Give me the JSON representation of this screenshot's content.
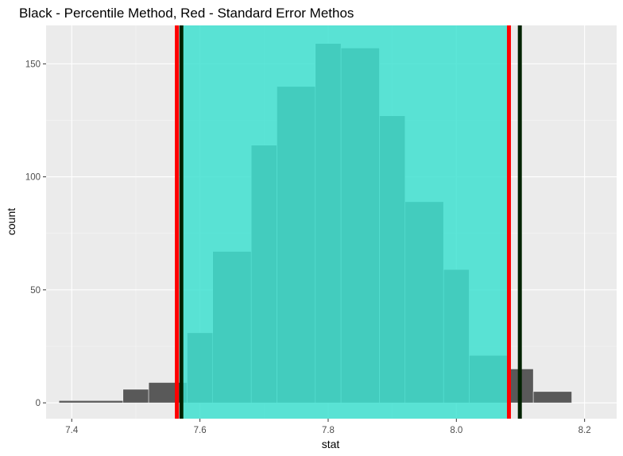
{
  "chart_data": {
    "type": "bar",
    "title": "Black - Percentile Method, Red - Standard Error Methos",
    "xlabel": "stat",
    "ylabel": "count",
    "xlim": [
      7.36,
      8.25
    ],
    "ylim": [
      -7,
      167
    ],
    "xticks": [
      7.4,
      7.6,
      7.8,
      8.0,
      8.2
    ],
    "xtick_labels": [
      "7.4",
      "7.6",
      "7.8",
      "8.0",
      "8.2"
    ],
    "yticks": [
      0,
      50,
      100,
      150
    ],
    "ytick_labels": [
      "0",
      "50",
      "100",
      "150"
    ],
    "grid": true,
    "bins": [
      {
        "x0": 7.38,
        "x1": 7.48,
        "count": 1
      },
      {
        "x0": 7.48,
        "x1": 7.48,
        "count": 0
      },
      {
        "x0": 7.48,
        "x1": 7.52,
        "count": 6
      },
      {
        "x0": 7.52,
        "x1": 7.58,
        "count": 9
      },
      {
        "x0": 7.58,
        "x1": 7.62,
        "count": 31
      },
      {
        "x0": 7.62,
        "x1": 7.68,
        "count": 67
      },
      {
        "x0": 7.68,
        "x1": 7.72,
        "count": 114
      },
      {
        "x0": 7.72,
        "x1": 7.78,
        "count": 140
      },
      {
        "x0": 7.78,
        "x1": 7.82,
        "count": 159
      },
      {
        "x0": 7.82,
        "x1": 7.88,
        "count": 157
      },
      {
        "x0": 7.88,
        "x1": 7.92,
        "count": 127
      },
      {
        "x0": 7.92,
        "x1": 7.98,
        "count": 89
      },
      {
        "x0": 7.98,
        "x1": 8.02,
        "count": 59
      },
      {
        "x0": 8.02,
        "x1": 8.08,
        "count": 21
      },
      {
        "x0": 8.08,
        "x1": 8.12,
        "count": 15
      },
      {
        "x0": 8.12,
        "x1": 8.18,
        "count": 5
      }
    ],
    "shaded_region": {
      "x0": 7.571,
      "x1": 8.082,
      "color": "#40E0D0",
      "opacity": 0.85
    },
    "vlines": [
      {
        "x": 7.571,
        "color": "#002200",
        "method": "percentile"
      },
      {
        "x": 8.099,
        "color": "#002200",
        "method": "percentile"
      },
      {
        "x": 7.564,
        "color": "#ff0000",
        "method": "standard_error"
      },
      {
        "x": 8.082,
        "color": "#ff0000",
        "method": "standard_error"
      }
    ],
    "colors": {
      "panel_background": "#ebebeb",
      "grid_major": "#ffffff",
      "grid_minor": "#f5f5f5",
      "bar_fill": "#595959",
      "bar_outline": "#ffffff"
    }
  }
}
